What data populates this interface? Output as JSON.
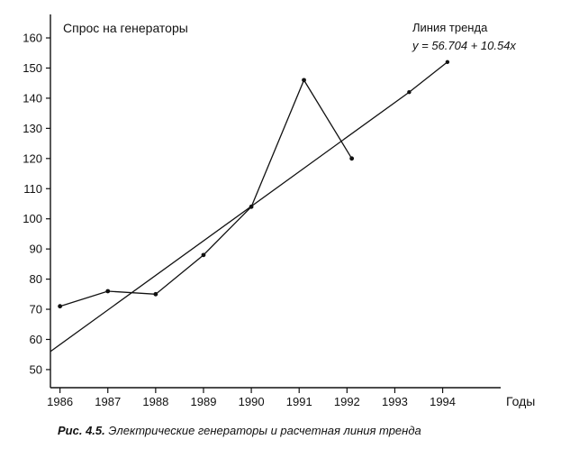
{
  "chart_data": {
    "type": "line",
    "ylabel": "Спрос на генераторы",
    "xlabel": "Годы",
    "x_ticks": [
      "1986",
      "1987",
      "1988",
      "1989",
      "1990",
      "1991",
      "1992",
      "1993",
      "1994"
    ],
    "y_ticks": [
      50,
      60,
      70,
      80,
      90,
      100,
      110,
      120,
      130,
      140,
      150,
      160
    ],
    "xlim": [
      1985.8,
      1995.1
    ],
    "ylim": [
      44,
      163
    ],
    "series": [
      {
        "points": [
          {
            "x": 1986,
            "y": 71
          },
          {
            "x": 1987,
            "y": 76
          },
          {
            "x": 1988,
            "y": 75
          },
          {
            "x": 1989,
            "y": 88
          },
          {
            "x": 1990,
            "y": 104
          },
          {
            "x": 1991.1,
            "y": 146
          },
          {
            "x": 1992.1,
            "y": 120
          }
        ]
      }
    ],
    "trend": {
      "label": "Линия тренда",
      "equation": "y = 56.704 + 10.54x",
      "points": [
        {
          "x": 1985.8,
          "y": 56
        },
        {
          "x": 1993.3,
          "y": 142
        },
        {
          "x": 1994.1,
          "y": 152
        }
      ]
    },
    "grid": false
  },
  "caption": {
    "lead": "Рис. 4.5.",
    "text": "Электрические генераторы и расчетная линия тренда"
  }
}
